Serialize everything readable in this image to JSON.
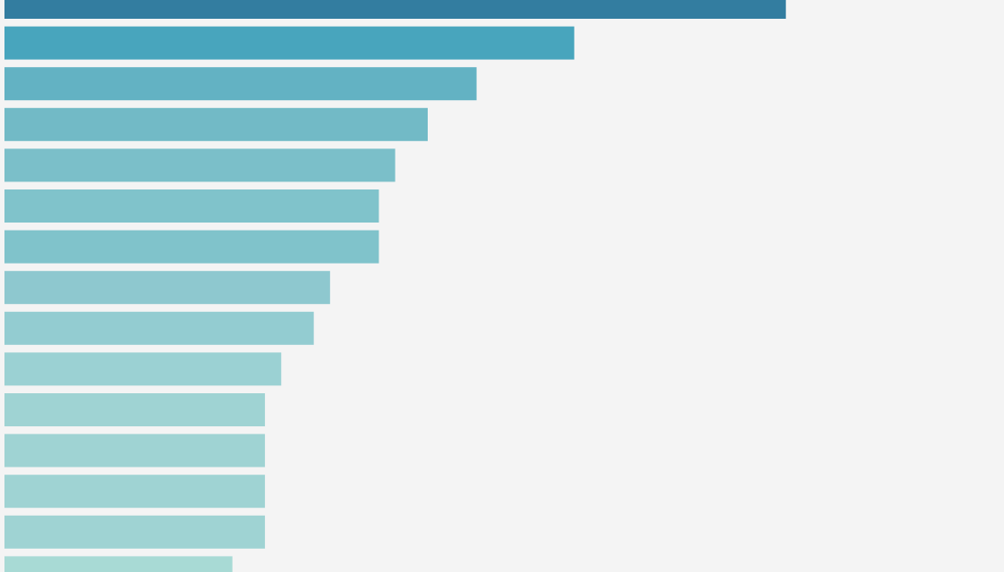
{
  "chart_data": {
    "type": "bar",
    "orientation": "horizontal",
    "categories": [
      null,
      null,
      null,
      null,
      null,
      null,
      null,
      null,
      null,
      null,
      null,
      null,
      null,
      null,
      null
    ],
    "values": [
      48,
      35,
      29,
      26,
      24,
      23,
      23,
      20,
      19,
      17,
      16,
      16,
      16,
      16,
      14
    ],
    "colors": [
      "#337da0",
      "#48a5bd",
      "#63b2c3",
      "#72bac6",
      "#7bbfc9",
      "#80c3cb",
      "#80c3cb",
      "#8ec8cf",
      "#93ccd1",
      "#9bd1d3",
      "#9fd3d3",
      "#9fd3d3",
      "#9fd3d3",
      "#9fd3d3",
      "#a8dad5"
    ],
    "xlim": [
      0,
      61.4
    ]
  }
}
